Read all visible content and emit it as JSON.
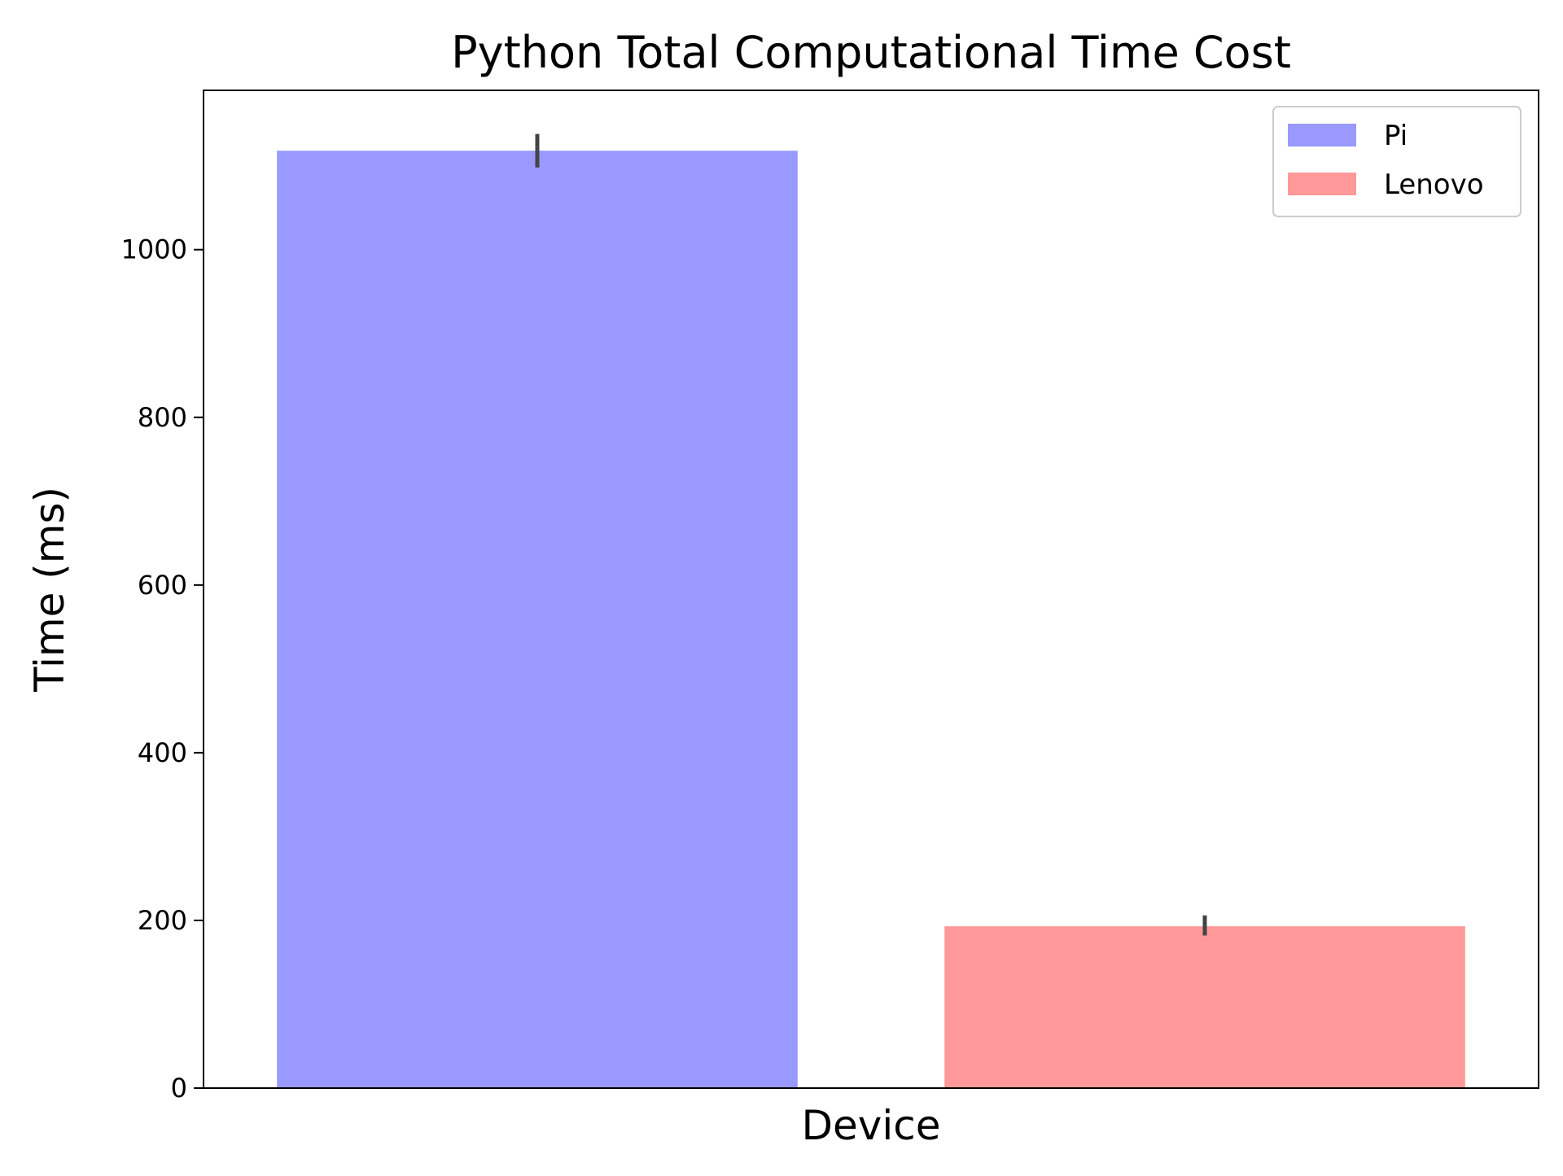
{
  "chart_data": {
    "type": "bar",
    "title": "Python Total Computational Time Cost",
    "xlabel": "Device",
    "ylabel": "Time (ms)",
    "categories": [],
    "ylim": [
      0,
      1190
    ],
    "yticks": [
      0,
      200,
      400,
      600,
      800,
      1000
    ],
    "yticklabels": [
      "0",
      "200",
      "400",
      "600",
      "800",
      "1000"
    ],
    "grid": false,
    "legend": {
      "position": "top-right",
      "entries": [
        "Pi",
        "Lenovo"
      ]
    },
    "series": [
      {
        "name": "Pi",
        "value": 1118,
        "error": [
          1098,
          1138
        ],
        "color": "#9999ff"
      },
      {
        "name": "Lenovo",
        "value": 193,
        "error": [
          182,
          206
        ],
        "color": "#ff9999"
      }
    ],
    "error_bar_color": "#444444"
  }
}
